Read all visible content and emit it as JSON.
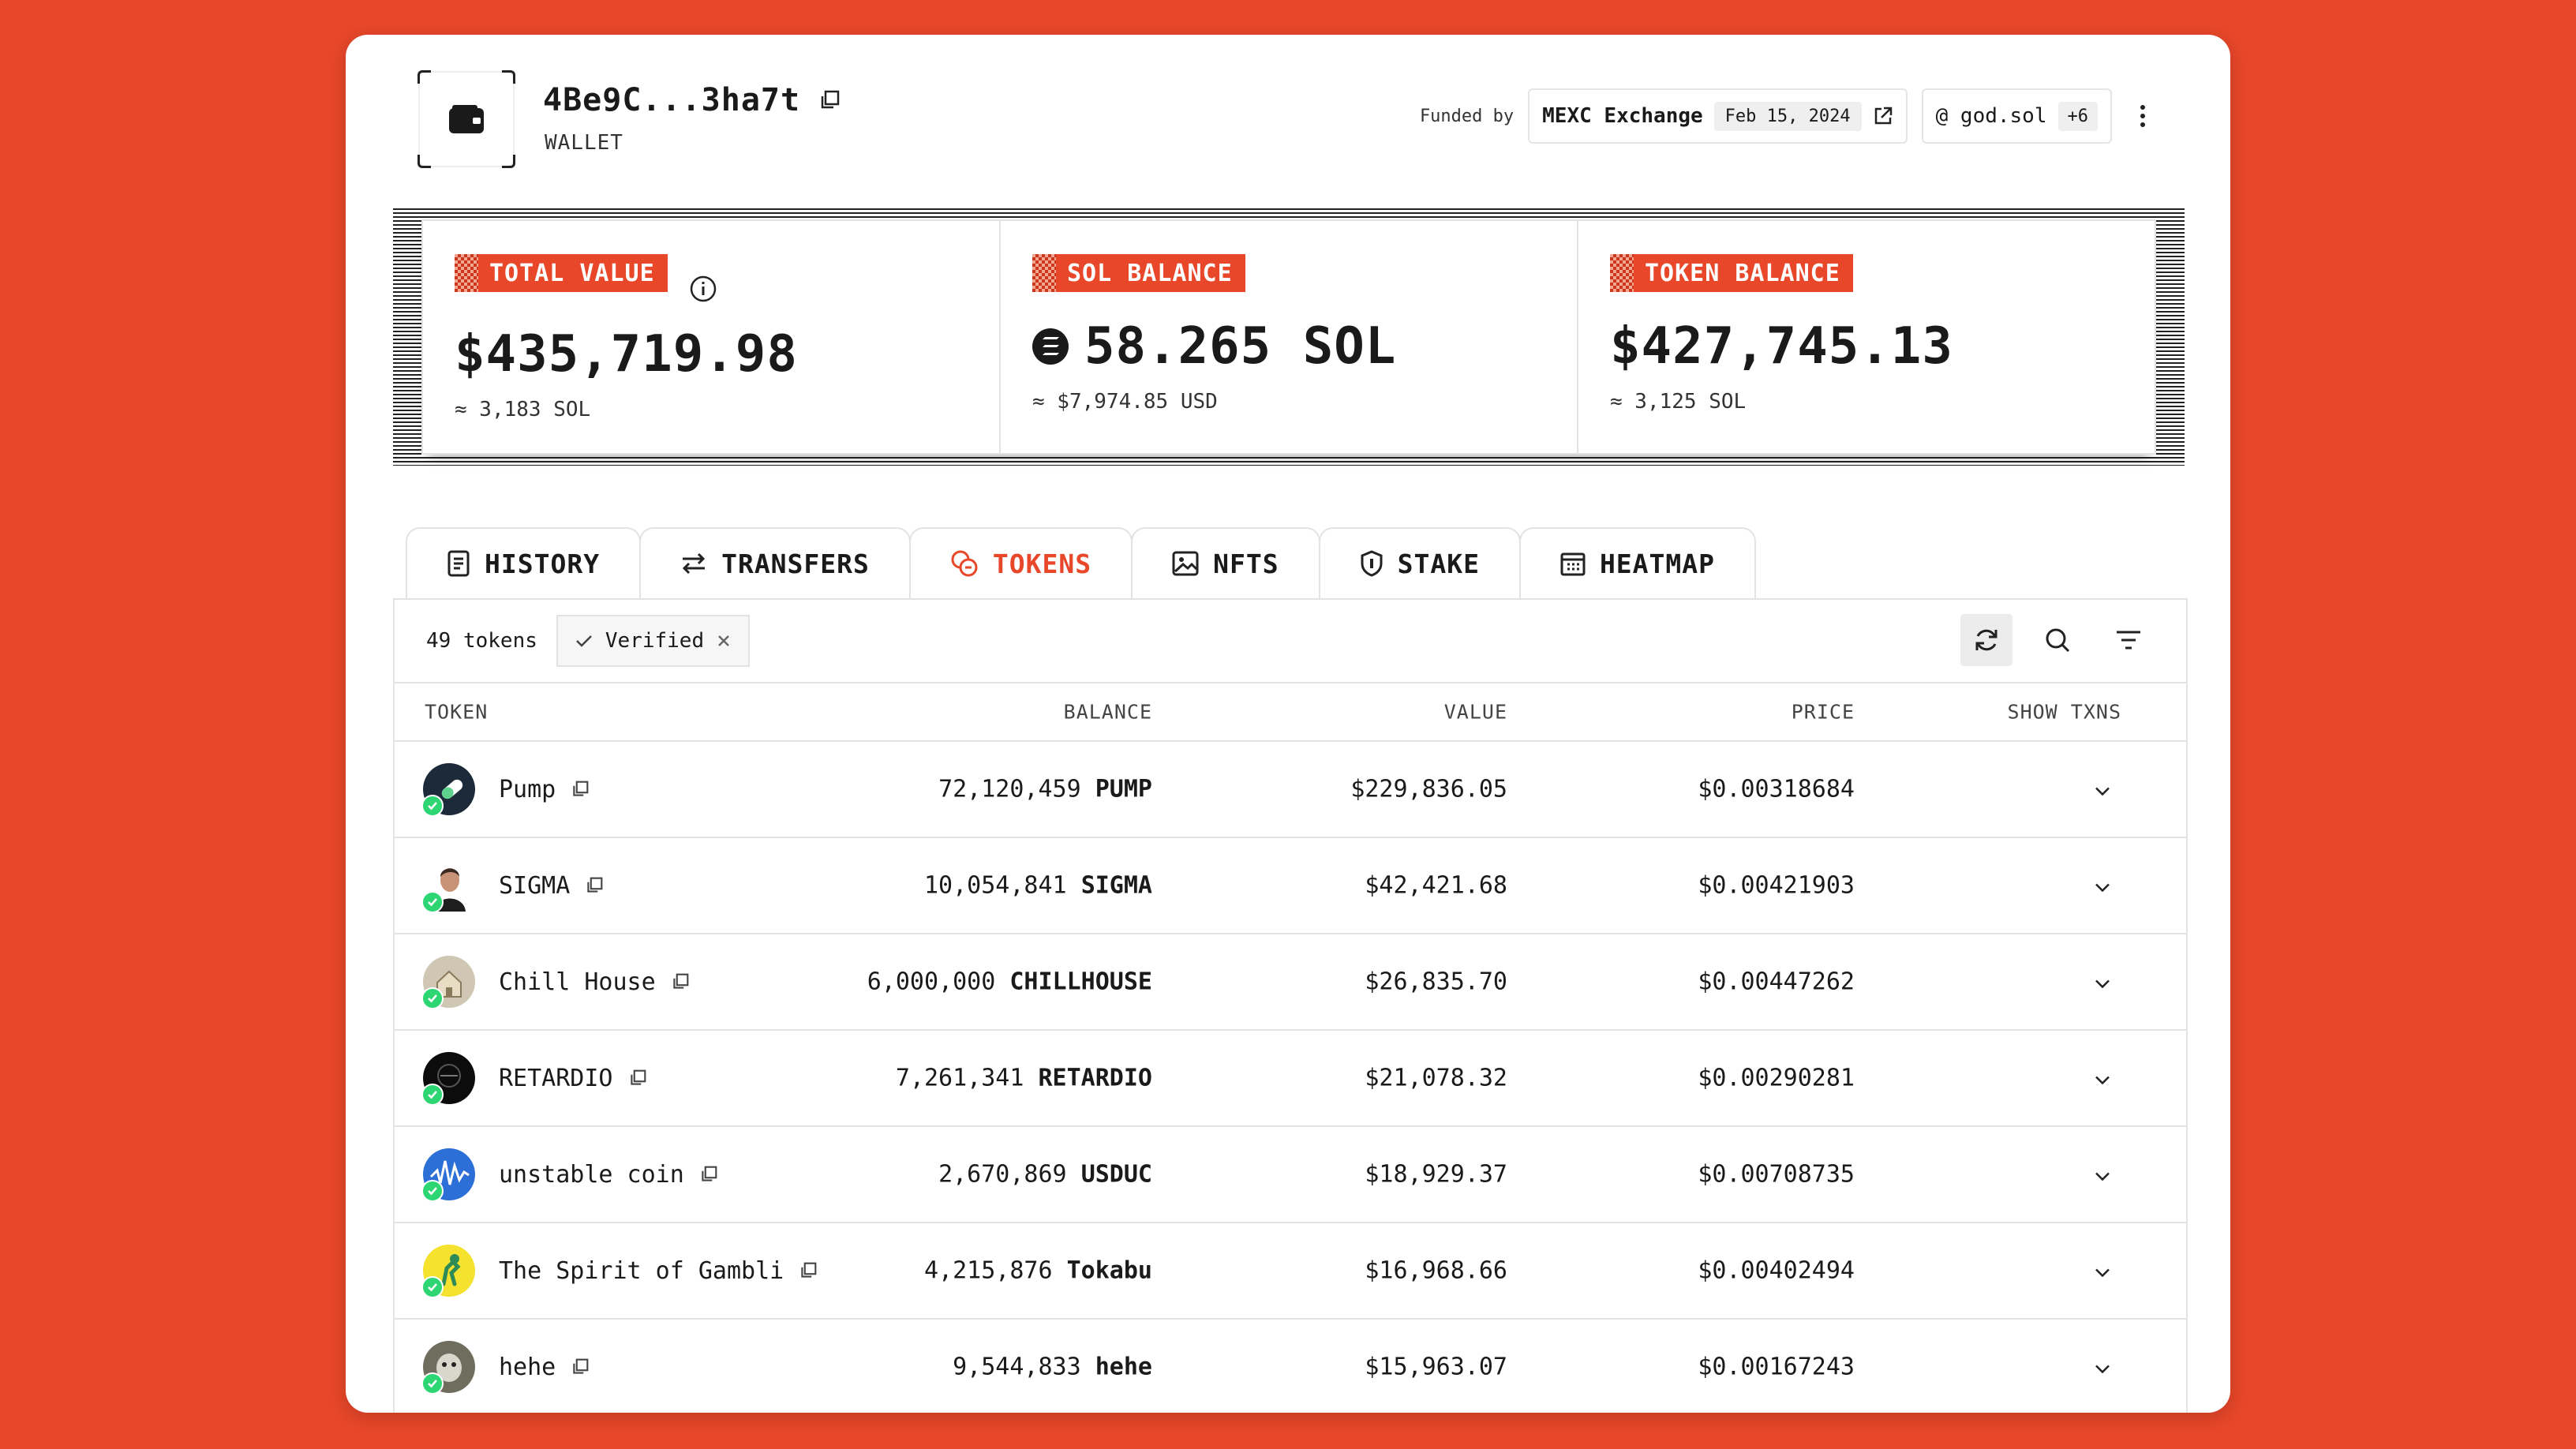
{
  "wallet": {
    "address": "4Be9C...3ha7t",
    "type_label": "WALLET",
    "funded_label": "Funded by",
    "funder": "MEXC Exchange",
    "funded_date": "Feb 15, 2024",
    "domain": "@ god.sol",
    "domain_more": "+6"
  },
  "stats": [
    {
      "label": "TOTAL VALUE",
      "value": "$435,719.98",
      "sub": "≈ 3,183 SOL"
    },
    {
      "label": "SOL BALANCE",
      "value": "58.265 SOL",
      "sub": "≈ $7,974.85 USD"
    },
    {
      "label": "TOKEN BALANCE",
      "value": "$427,745.13",
      "sub": "≈ 3,125 SOL"
    }
  ],
  "tabs": [
    {
      "label": "HISTORY",
      "icon": "document-icon"
    },
    {
      "label": "TRANSFERS",
      "icon": "arrows-icon"
    },
    {
      "label": "TOKENS",
      "icon": "coins-icon",
      "active": true
    },
    {
      "label": "NFTS",
      "icon": "image-icon"
    },
    {
      "label": "STAKE",
      "icon": "shield-icon"
    },
    {
      "label": "HEATMAP",
      "icon": "calendar-icon"
    }
  ],
  "toolbar": {
    "count": "49 tokens",
    "filter_chip": "Verified"
  },
  "table": {
    "headers": {
      "token": "TOKEN",
      "balance": "BALANCE",
      "value": "VALUE",
      "price": "PRICE",
      "txns": "SHOW TXNS"
    },
    "rows": [
      {
        "name": "Pump",
        "amount": "72,120,459",
        "symbol": "PUMP",
        "value": "$229,836.05",
        "price": "$0.00318684"
      },
      {
        "name": "SIGMA",
        "amount": "10,054,841",
        "symbol": "SIGMA",
        "value": "$42,421.68",
        "price": "$0.00421903"
      },
      {
        "name": "Chill House",
        "amount": "6,000,000",
        "symbol": "CHILLHOUSE",
        "value": "$26,835.70",
        "price": "$0.00447262"
      },
      {
        "name": "RETARDIO",
        "amount": "7,261,341",
        "symbol": "RETARDIO",
        "value": "$21,078.32",
        "price": "$0.00290281"
      },
      {
        "name": "unstable coin",
        "amount": "2,670,869",
        "symbol": "USDUC",
        "value": "$18,929.37",
        "price": "$0.00708735"
      },
      {
        "name": "The Spirit of Gambli",
        "amount": "4,215,876",
        "symbol": "Tokabu",
        "value": "$16,968.66",
        "price": "$0.00402494"
      },
      {
        "name": "hehe",
        "amount": "9,544,833",
        "symbol": "hehe",
        "value": "$15,963.07",
        "price": "$0.00167243"
      }
    ]
  },
  "colors": {
    "accent": "#e8472a",
    "verified": "#2ed573"
  }
}
